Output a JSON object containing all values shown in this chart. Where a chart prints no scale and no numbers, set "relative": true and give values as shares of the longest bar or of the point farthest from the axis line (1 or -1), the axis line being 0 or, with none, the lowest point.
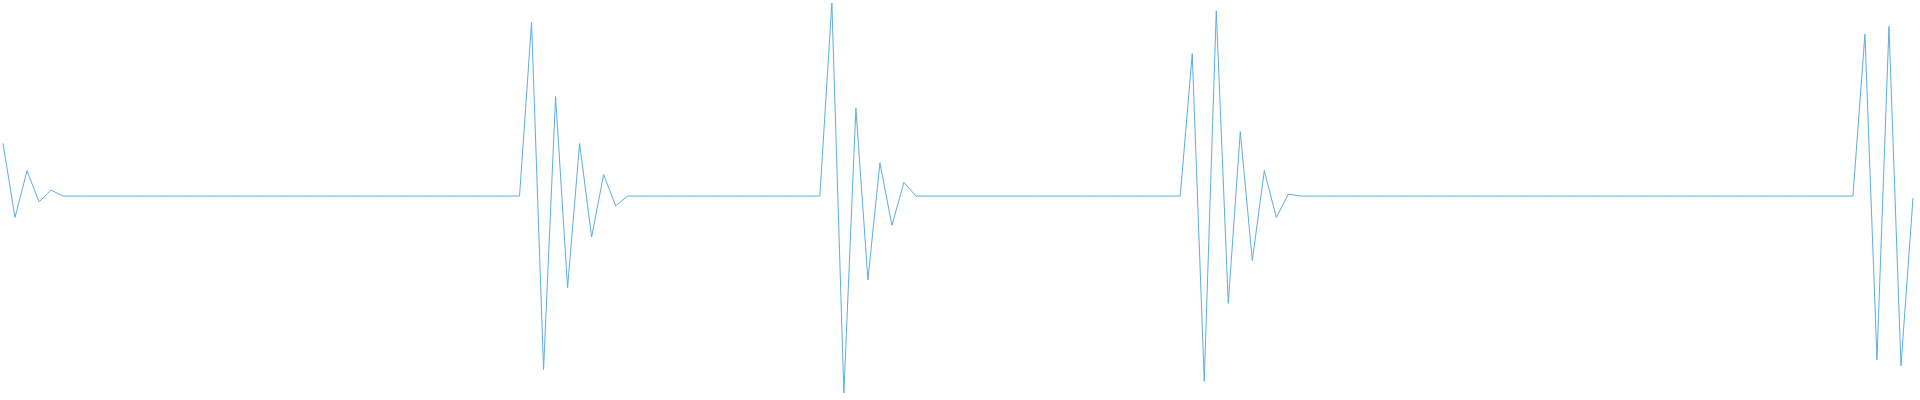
{
  "chart_data": {
    "type": "line",
    "relative": true,
    "categories": [
      null,
      null,
      null,
      null,
      null,
      null,
      null,
      null,
      null,
      null,
      null,
      null,
      null,
      null,
      null,
      null,
      null,
      null,
      null,
      null,
      null,
      null,
      null,
      null,
      null,
      null,
      null,
      null,
      null,
      null,
      null,
      null,
      null,
      null,
      null,
      null,
      null,
      null,
      null,
      null,
      null,
      null,
      null,
      null,
      null,
      null,
      null,
      null,
      null,
      null,
      null,
      null,
      null,
      null,
      null,
      null,
      null,
      null,
      null,
      null,
      null,
      null,
      null,
      null,
      null,
      null,
      null,
      null,
      null,
      null,
      null,
      null,
      null,
      null,
      null,
      null,
      null,
      null,
      null,
      null,
      null,
      null,
      null,
      null,
      null,
      null,
      null,
      null,
      null,
      null,
      null,
      null,
      null,
      null,
      null,
      null,
      null,
      null,
      null,
      null,
      null,
      null,
      null,
      null,
      null,
      null,
      null,
      null,
      null,
      null,
      null,
      null,
      null,
      null,
      null,
      null,
      null,
      null,
      null,
      null,
      null,
      null,
      null,
      null,
      null,
      null,
      null,
      null,
      null,
      null,
      null,
      null,
      null,
      null,
      null,
      null,
      null,
      null,
      null,
      null,
      null,
      null,
      null,
      null,
      null,
      null,
      null,
      null,
      null,
      null,
      null,
      null,
      null,
      null,
      null,
      null,
      null,
      null,
      null,
      null
    ],
    "series": [
      {
        "color": "#5dade2",
        "values": [
          0.64,
          0.45,
          0.57,
          0.49,
          0.52,
          0.505,
          0.505,
          0.505,
          0.505,
          0.505,
          0.505,
          0.505,
          0.505,
          0.505,
          0.505,
          0.505,
          0.505,
          0.505,
          0.505,
          0.505,
          0.505,
          0.505,
          0.505,
          0.505,
          0.505,
          0.505,
          0.505,
          0.505,
          0.505,
          0.505,
          0.505,
          0.505,
          0.505,
          0.505,
          0.505,
          0.505,
          0.505,
          0.505,
          0.505,
          0.505,
          0.505,
          0.505,
          0.505,
          0.505,
          0.95,
          0.06,
          0.76,
          0.27,
          0.64,
          0.4,
          0.56,
          0.48,
          0.505,
          0.505,
          0.505,
          0.505,
          0.505,
          0.505,
          0.505,
          0.505,
          0.505,
          0.505,
          0.505,
          0.505,
          0.505,
          0.505,
          0.505,
          0.505,
          0.505,
          1,
          0,
          0.73,
          0.29,
          0.59,
          0.43,
          0.54,
          0.505,
          0.505,
          0.505,
          0.505,
          0.505,
          0.505,
          0.505,
          0.505,
          0.505,
          0.505,
          0.505,
          0.505,
          0.505,
          0.505,
          0.505,
          0.505,
          0.505,
          0.505,
          0.505,
          0.505,
          0.505,
          0.505,
          0.505,
          0.87,
          0.03,
          0.98,
          0.23,
          0.67,
          0.34,
          0.57,
          0.45,
          0.51,
          0.505,
          0.505,
          0.505,
          0.505,
          0.505,
          0.505,
          0.505,
          0.505,
          0.505,
          0.505,
          0.505,
          0.505,
          0.505,
          0.505,
          0.505,
          0.505,
          0.505,
          0.505,
          0.505,
          0.505,
          0.505,
          0.505,
          0.505,
          0.505,
          0.505,
          0.505,
          0.505,
          0.505,
          0.505,
          0.505,
          0.505,
          0.505,
          0.505,
          0.505,
          0.505,
          0.505,
          0.505,
          0.505,
          0.505,
          0.505,
          0.505,
          0.505,
          0.505,
          0.505,
          0.505,
          0.505,
          0.505,
          0.92,
          0.085,
          0.94,
          0.07,
          0.5
        ]
      }
    ]
  }
}
